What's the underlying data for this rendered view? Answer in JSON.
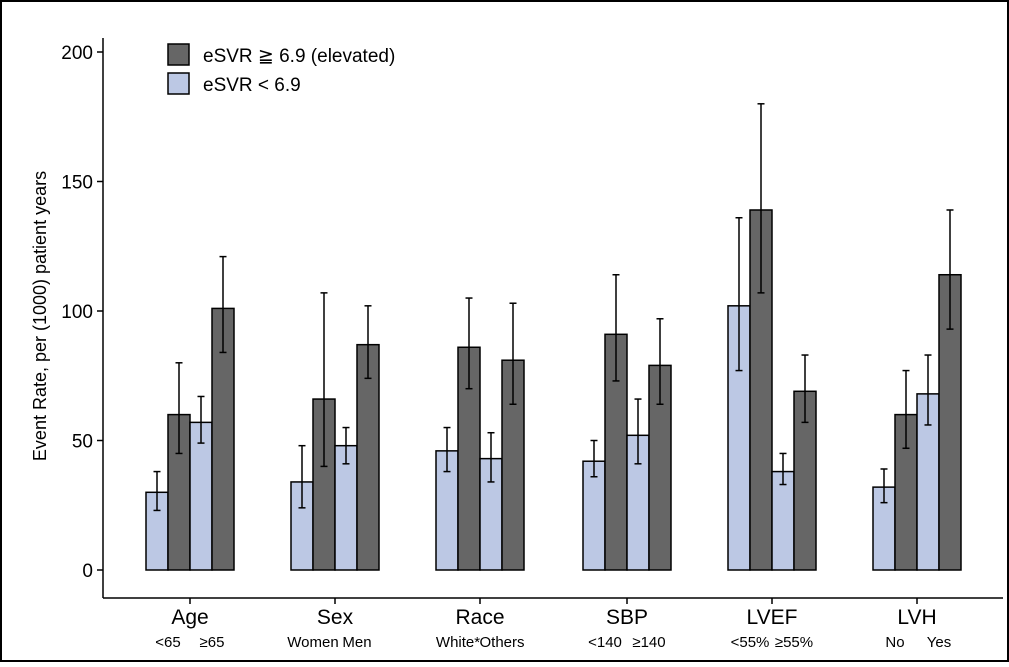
{
  "chart_data": {
    "type": "bar",
    "ylabel": "Event Rate, per (1000) patient years",
    "ylim": [
      0,
      200
    ],
    "yticks": [
      0,
      50,
      100,
      150,
      200
    ],
    "grid": false,
    "legend_position": "top-left",
    "series": [
      {
        "name": "eSVR ≧ 6.9 (elevated)",
        "color": "#666666"
      },
      {
        "name": "eSVR < 6.9",
        "color": "#bcc8e4"
      }
    ],
    "groups": [
      {
        "label": "Age",
        "subgroups": [
          {
            "label": "<65",
            "low": {
              "value": 30,
              "lower": 23,
              "upper": 38
            },
            "high": {
              "value": 60,
              "lower": 45,
              "upper": 80
            }
          },
          {
            "label": "≥65",
            "low": {
              "value": 57,
              "lower": 49,
              "upper": 67
            },
            "high": {
              "value": 101,
              "lower": 84,
              "upper": 121
            }
          }
        ]
      },
      {
        "label": "Sex",
        "subgroups": [
          {
            "label": "Women",
            "low": {
              "value": 34,
              "lower": 24,
              "upper": 48
            },
            "high": {
              "value": 66,
              "lower": 40,
              "upper": 107
            }
          },
          {
            "label": "Men",
            "low": {
              "value": 48,
              "lower": 41,
              "upper": 55
            },
            "high": {
              "value": 87,
              "lower": 74,
              "upper": 102
            }
          }
        ]
      },
      {
        "label": "Race",
        "subgroups": [
          {
            "label": "White*",
            "low": {
              "value": 46,
              "lower": 38,
              "upper": 55
            },
            "high": {
              "value": 86,
              "lower": 70,
              "upper": 105
            }
          },
          {
            "label": "Others",
            "low": {
              "value": 43,
              "lower": 34,
              "upper": 53
            },
            "high": {
              "value": 81,
              "lower": 64,
              "upper": 103
            }
          }
        ]
      },
      {
        "label": "SBP",
        "subgroups": [
          {
            "label": "<140",
            "low": {
              "value": 42,
              "lower": 36,
              "upper": 50
            },
            "high": {
              "value": 91,
              "lower": 73,
              "upper": 114
            }
          },
          {
            "label": "≥140",
            "low": {
              "value": 52,
              "lower": 41,
              "upper": 66
            },
            "high": {
              "value": 79,
              "lower": 64,
              "upper": 97
            }
          }
        ]
      },
      {
        "label": "LVEF",
        "subgroups": [
          {
            "label": "<55%",
            "low": {
              "value": 102,
              "lower": 77,
              "upper": 136
            },
            "high": {
              "value": 139,
              "lower": 107,
              "upper": 180
            }
          },
          {
            "label": "≥55%",
            "low": {
              "value": 38,
              "lower": 33,
              "upper": 45
            },
            "high": {
              "value": 69,
              "lower": 57,
              "upper": 83
            }
          }
        ]
      },
      {
        "label": "LVH",
        "subgroups": [
          {
            "label": "No",
            "low": {
              "value": 32,
              "lower": 26,
              "upper": 39
            },
            "high": {
              "value": 60,
              "lower": 47,
              "upper": 77
            }
          },
          {
            "label": "Yes",
            "low": {
              "value": 68,
              "lower": 56,
              "upper": 83
            },
            "high": {
              "value": 114,
              "lower": 93,
              "upper": 139
            }
          }
        ]
      }
    ]
  }
}
